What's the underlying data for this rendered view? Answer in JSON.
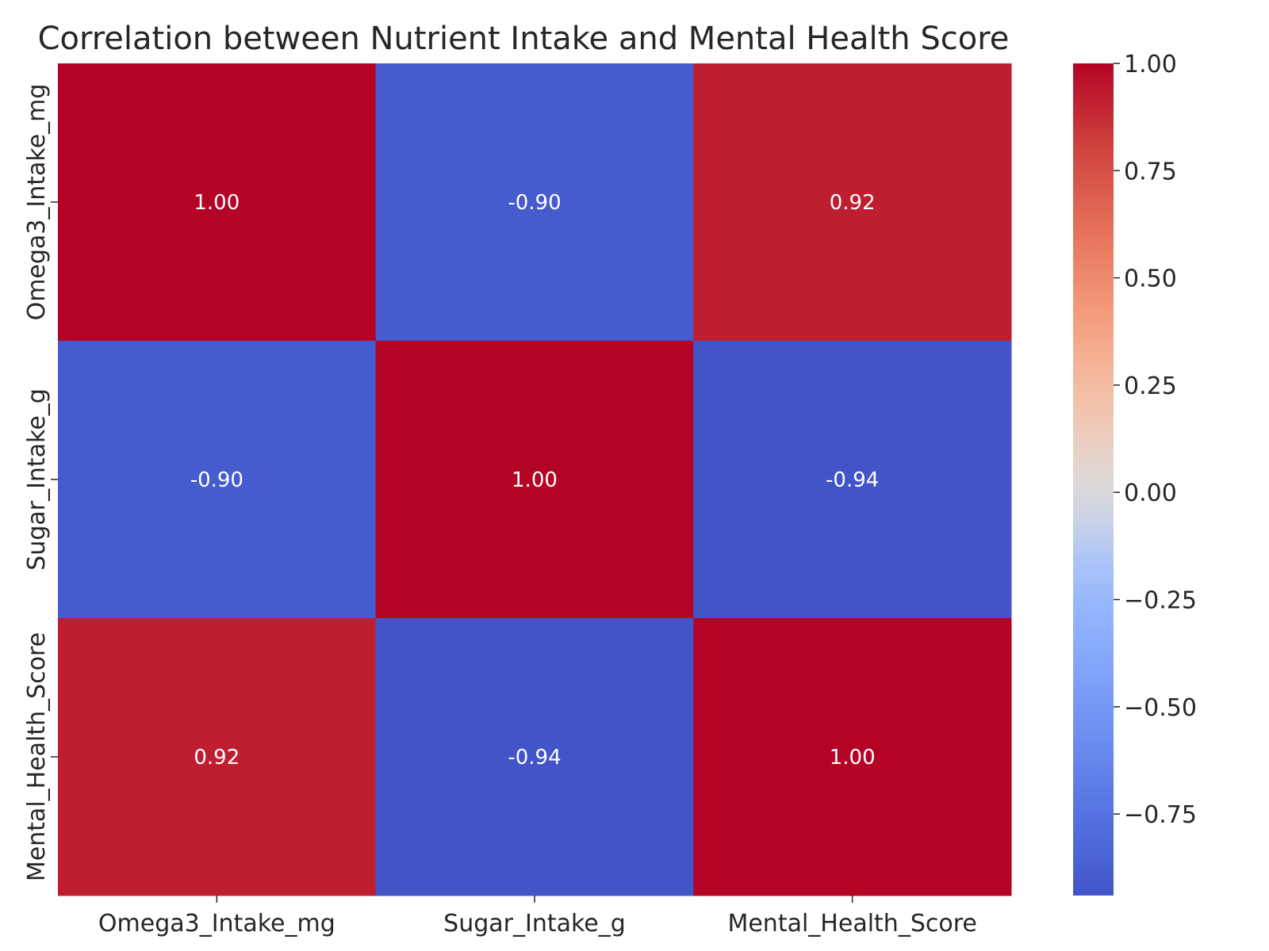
{
  "chart_data": {
    "type": "heatmap",
    "title": "Correlation between Nutrient Intake and Mental Health Score",
    "x_categories": [
      "Omega3_Intake_mg",
      "Sugar_Intake_g",
      "Mental_Health_Score"
    ],
    "y_categories": [
      "Omega3_Intake_mg",
      "Sugar_Intake_g",
      "Mental_Health_Score"
    ],
    "values": [
      [
        1.0,
        -0.9,
        0.92
      ],
      [
        -0.9,
        1.0,
        -0.94
      ],
      [
        0.92,
        -0.94,
        1.0
      ]
    ],
    "cell_labels": [
      [
        "1.00",
        "-0.90",
        "0.92"
      ],
      [
        "-0.90",
        "1.00",
        "-0.94"
      ],
      [
        "0.92",
        "-0.94",
        "1.00"
      ]
    ],
    "colormap": "coolwarm",
    "color_range": [
      -0.94,
      1.0
    ],
    "colorbar": {
      "ticks": [
        1.0,
        0.75,
        0.5,
        0.25,
        0.0,
        -0.25,
        -0.5,
        -0.75
      ],
      "tick_labels": [
        "1.00",
        "0.75",
        "0.50",
        "0.25",
        "0.00",
        "−0.25",
        "−0.50",
        "−0.75"
      ],
      "placement": "right"
    },
    "xlabel": "",
    "ylabel": "",
    "grid": false
  }
}
